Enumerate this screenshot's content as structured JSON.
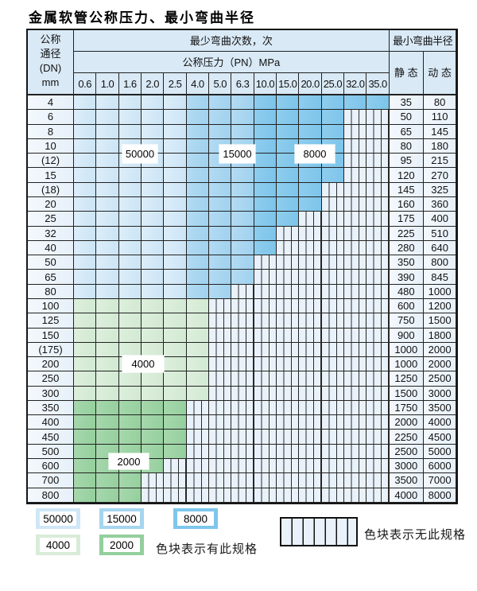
{
  "title": "金属软管公称压力、最小弯曲半径",
  "table": {
    "header": {
      "dn_lines": [
        "公称",
        "通径",
        "(DN)",
        "mm"
      ],
      "bend_cycles": "最少弯曲次数，次",
      "pressure_title": "公称压力（PN）MPa",
      "pressures": [
        "0.6",
        "1.0",
        "1.6",
        "2.0",
        "2.5",
        "4.0",
        "5.0",
        "6.3",
        "10.0",
        "15.0",
        "20.0",
        "25.0",
        "32.0",
        "35.0"
      ],
      "radius_title": "最小弯曲半径",
      "static_label": "静 态",
      "dynamic_label": "动 态"
    },
    "blue_zone_columns": {
      "50000": [
        "0.6",
        "1.0",
        "1.6",
        "2.0",
        "2.5"
      ],
      "15000": [
        "4.0",
        "5.0",
        "6.3"
      ],
      "8000": [
        "10.0",
        "15.0",
        "20.0",
        "25.0",
        "32.0",
        "35.0"
      ]
    },
    "rows": [
      {
        "dn": "4",
        "band": "blue",
        "colored_cols": 14,
        "static": "35",
        "dynamic": "80"
      },
      {
        "dn": "6",
        "band": "blue",
        "colored_cols": 12,
        "static": "50",
        "dynamic": "110"
      },
      {
        "dn": "8",
        "band": "blue",
        "colored_cols": 12,
        "static": "65",
        "dynamic": "145"
      },
      {
        "dn": "10",
        "band": "blue",
        "colored_cols": 12,
        "static": "80",
        "dynamic": "180"
      },
      {
        "dn": "(12)",
        "band": "blue",
        "colored_cols": 12,
        "static": "95",
        "dynamic": "215"
      },
      {
        "dn": "15",
        "band": "blue",
        "colored_cols": 12,
        "static": "120",
        "dynamic": "270"
      },
      {
        "dn": "(18)",
        "band": "blue",
        "colored_cols": 11,
        "static": "145",
        "dynamic": "325"
      },
      {
        "dn": "20",
        "band": "blue",
        "colored_cols": 11,
        "static": "160",
        "dynamic": "360"
      },
      {
        "dn": "25",
        "band": "blue",
        "colored_cols": 10,
        "static": "175",
        "dynamic": "400"
      },
      {
        "dn": "32",
        "band": "blue",
        "colored_cols": 9,
        "static": "225",
        "dynamic": "510"
      },
      {
        "dn": "40",
        "band": "blue",
        "colored_cols": 9,
        "static": "280",
        "dynamic": "640"
      },
      {
        "dn": "50",
        "band": "blue",
        "colored_cols": 8,
        "static": "350",
        "dynamic": "800"
      },
      {
        "dn": "65",
        "band": "blue",
        "colored_cols": 8,
        "static": "390",
        "dynamic": "845"
      },
      {
        "dn": "80",
        "band": "blue",
        "colored_cols": 7,
        "static": "480",
        "dynamic": "1000"
      },
      {
        "dn": "100",
        "band": "g4000",
        "colored_cols": 6,
        "static": "600",
        "dynamic": "1200"
      },
      {
        "dn": "125",
        "band": "g4000",
        "colored_cols": 6,
        "static": "750",
        "dynamic": "1500"
      },
      {
        "dn": "150",
        "band": "g4000",
        "colored_cols": 6,
        "static": "900",
        "dynamic": "1800"
      },
      {
        "dn": "(175)",
        "band": "g4000",
        "colored_cols": 6,
        "static": "1000",
        "dynamic": "2000"
      },
      {
        "dn": "200",
        "band": "g4000",
        "colored_cols": 6,
        "static": "1000",
        "dynamic": "2000"
      },
      {
        "dn": "250",
        "band": "g4000",
        "colored_cols": 6,
        "static": "1250",
        "dynamic": "2500"
      },
      {
        "dn": "300",
        "band": "g4000",
        "colored_cols": 6,
        "static": "1500",
        "dynamic": "3000"
      },
      {
        "dn": "350",
        "band": "g2000",
        "colored_cols": 5,
        "static": "1750",
        "dynamic": "3500"
      },
      {
        "dn": "400",
        "band": "g2000",
        "colored_cols": 5,
        "static": "2000",
        "dynamic": "4000"
      },
      {
        "dn": "450",
        "band": "g2000",
        "colored_cols": 5,
        "static": "2250",
        "dynamic": "4500"
      },
      {
        "dn": "500",
        "band": "g2000",
        "colored_cols": 5,
        "static": "2500",
        "dynamic": "5000"
      },
      {
        "dn": "600",
        "band": "g2000",
        "colored_cols": 4,
        "static": "3000",
        "dynamic": "6000"
      },
      {
        "dn": "700",
        "band": "g2000",
        "colored_cols": 3,
        "static": "3500",
        "dynamic": "7000"
      },
      {
        "dn": "800",
        "band": "g2000",
        "colored_cols": 3,
        "static": "4000",
        "dynamic": "8000"
      }
    ],
    "overlays": [
      {
        "text": "50000"
      },
      {
        "text": "15000"
      },
      {
        "text": "8000"
      },
      {
        "text": "4000"
      },
      {
        "text": "2000"
      }
    ]
  },
  "legend": {
    "swatches": [
      {
        "label": "50000"
      },
      {
        "label": "15000"
      },
      {
        "label": "8000"
      },
      {
        "label": "4000"
      },
      {
        "label": "2000"
      }
    ],
    "has_spec_note": "色块表示有此规格",
    "no_spec_note": "色块表示无此规格"
  },
  "colors": {
    "cycles_50000": "#cfe7f7",
    "cycles_15000": "#a6d5f0",
    "cycles_8000": "#7ec6ec",
    "cycles_4000": "#d8ecd8",
    "cycles_2000": "#93cf9d",
    "no_spec_fill": "#e9f2fa",
    "header_fill": "#d9e9f6",
    "grid_line": "#222222"
  }
}
